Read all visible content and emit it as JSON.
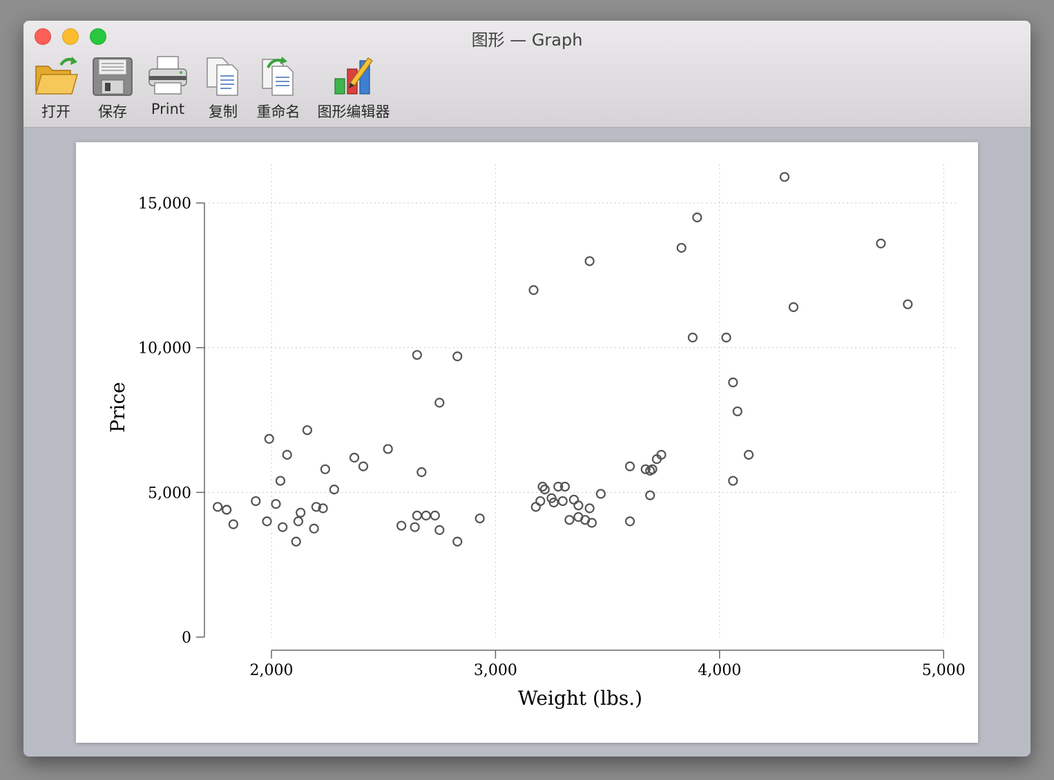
{
  "window": {
    "title": "图形 — Graph"
  },
  "toolbar": {
    "open_label": "打开",
    "save_label": "保存",
    "print_label": "Print",
    "copy_label": "复制",
    "rename_label": "重命名",
    "editor_label": "图形编辑器"
  },
  "icons": {
    "open": "folder-open-icon",
    "save": "floppy-disk-icon",
    "print": "printer-icon",
    "copy": "copy-documents-icon",
    "rename": "rename-documents-icon",
    "editor": "bar-chart-pencil-icon"
  },
  "colors": {
    "close": "#fc5f57",
    "minimize": "#fdbc2e",
    "maximize": "#28c840",
    "marker": "#555555"
  },
  "chart_data": {
    "type": "scatter",
    "xlabel": "Weight (lbs.)",
    "ylabel": "Price",
    "xlim": [
      1700,
      5000
    ],
    "ylim": [
      0,
      16500
    ],
    "xticks": [
      2000,
      3000,
      4000,
      5000
    ],
    "xtick_labels": [
      "2,000",
      "3,000",
      "4,000",
      "5,000"
    ],
    "yticks": [
      0,
      5000,
      10000,
      15000
    ],
    "ytick_labels": [
      "0",
      "5,000",
      "10,000",
      "15,000"
    ],
    "grid": true,
    "x": [
      1760,
      1800,
      1800,
      1830,
      1930,
      1980,
      1990,
      2020,
      2040,
      2050,
      2070,
      2110,
      2120,
      2130,
      2160,
      2190,
      2200,
      2230,
      2240,
      2280,
      2370,
      2410,
      2520,
      2580,
      2640,
      2650,
      2650,
      2670,
      2690,
      2730,
      2750,
      2750,
      2830,
      2830,
      2930,
      3170,
      3180,
      3200,
      3210,
      3220,
      3250,
      3260,
      3280,
      3300,
      3310,
      3330,
      3350,
      3370,
      3370,
      3400,
      3420,
      3420,
      3430,
      3470,
      3600,
      3600,
      3670,
      3690,
      3690,
      3700,
      3720,
      3740,
      3830,
      3880,
      3900,
      4030,
      4060,
      4060,
      4080,
      4130,
      4290,
      4330,
      4720,
      4840
    ],
    "y": [
      4500,
      4400,
      4400,
      3900,
      4700,
      4000,
      6850,
      4600,
      5400,
      3800,
      6300,
      3300,
      4000,
      4300,
      7150,
      3750,
      4500,
      4450,
      5800,
      5100,
      6200,
      5900,
      6500,
      3850,
      3800,
      4200,
      9750,
      5700,
      4200,
      4200,
      3700,
      8100,
      3300,
      9700,
      4100,
      11990,
      4500,
      4700,
      5200,
      5100,
      4800,
      4650,
      5200,
      4700,
      5200,
      4050,
      4750,
      4150,
      4550,
      4050,
      4450,
      12990,
      3950,
      4950,
      5900,
      4000,
      5800,
      4900,
      5750,
      5800,
      6150,
      6300,
      13450,
      10350,
      14500,
      10350,
      8800,
      5400,
      7800,
      6300,
      15900,
      11400,
      13600,
      11500
    ]
  }
}
